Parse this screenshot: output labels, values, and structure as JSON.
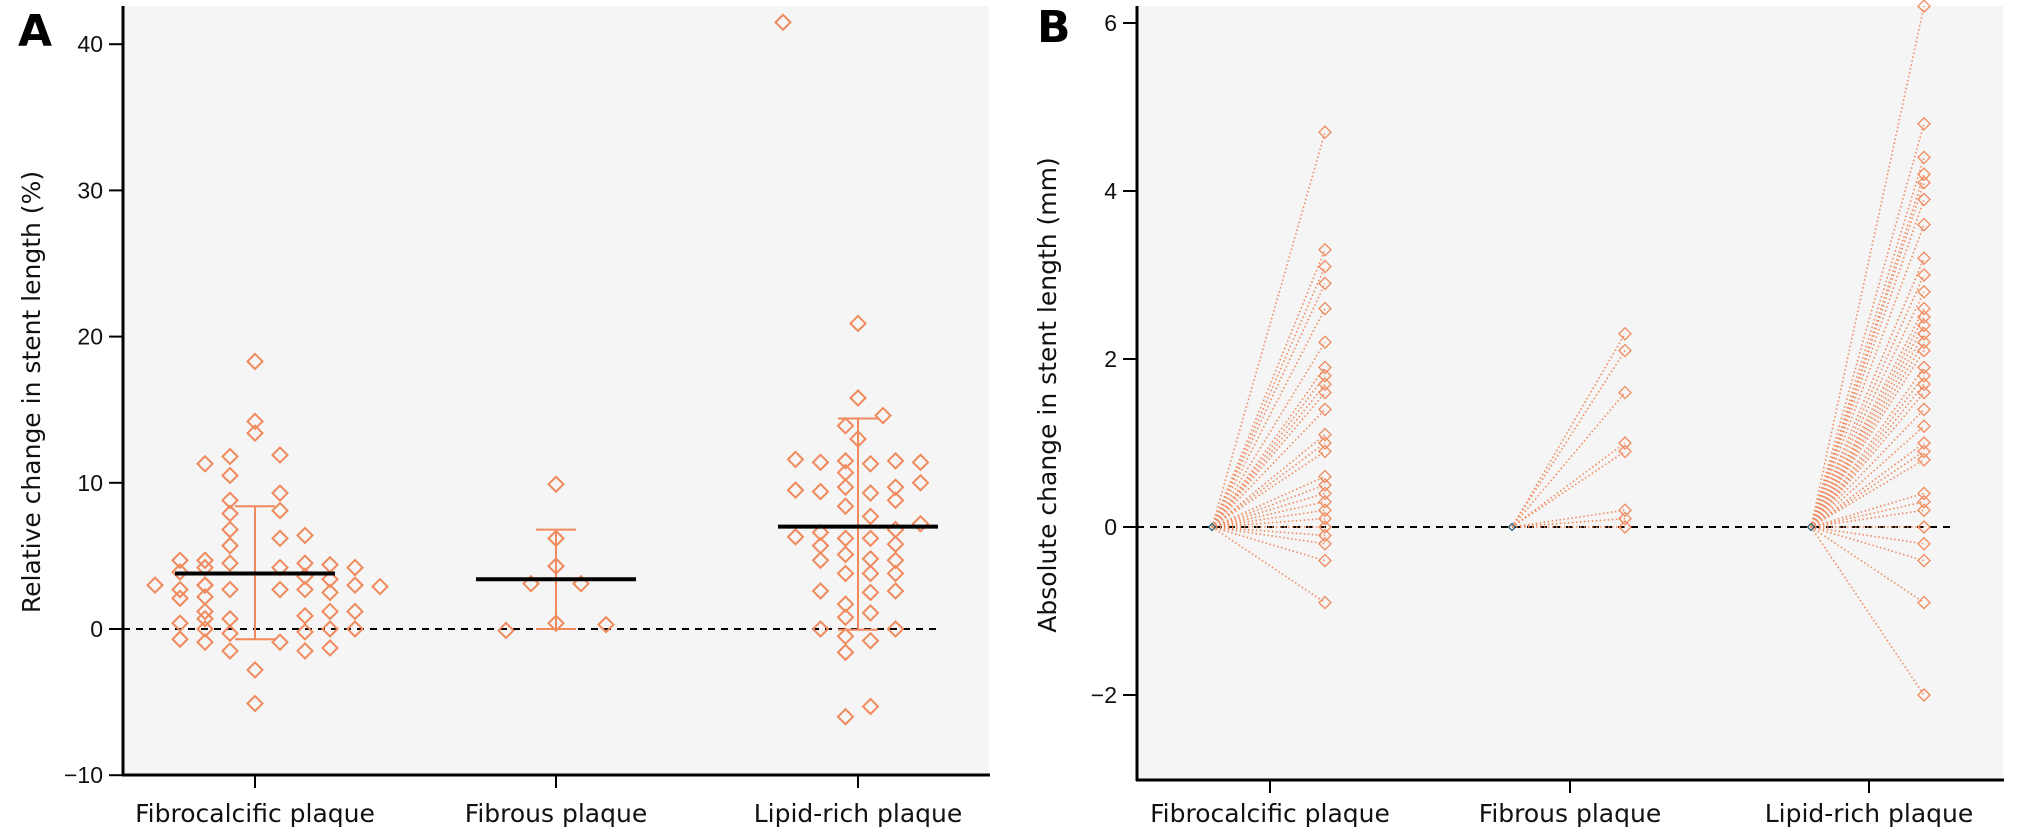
{
  "chart_data": [
    {
      "panel": "A",
      "type": "scatter",
      "subtype": "dot-plot with mean and SD error bars",
      "title": "",
      "xlabel": "",
      "ylabel": "Relative change in stent length (%)",
      "ylim": [
        -10,
        42
      ],
      "yticks": [
        -10,
        0,
        10,
        20,
        30,
        40
      ],
      "ytick_labels": [
        "−10",
        "0",
        "10",
        "20",
        "30",
        "40"
      ],
      "reference_line": 0,
      "grid": false,
      "categories": [
        "Fibrocalcific plaque",
        "Fibrous plaque",
        "Lipid-rich plaque"
      ],
      "series": [
        {
          "name": "Fibrocalcific plaque",
          "mean": 3.8,
          "sd_upper": 8.4,
          "sd_lower": -0.7,
          "values": [
            18.3,
            14.2,
            13.4,
            11.9,
            11.8,
            11.3,
            10.5,
            9.3,
            8.8,
            8.1,
            7.9,
            6.8,
            6.4,
            6.2,
            5.7,
            4.7,
            4.7,
            4.5,
            4.5,
            4.4,
            4.2,
            4.2,
            4.2,
            3.9,
            3.6,
            3.4,
            3.0,
            3.0,
            3.0,
            3.0,
            2.9,
            2.7,
            2.7,
            2.7,
            2.7,
            2.5,
            2.2,
            2.1,
            1.2,
            1.2,
            1.2,
            0.9,
            0.7,
            0.7,
            0.4,
            0.0,
            0.0,
            0.0,
            -0.2,
            -0.3,
            -0.7,
            -0.9,
            -0.9,
            -1.3,
            -1.5,
            -1.5,
            -2.8,
            -5.1
          ],
          "offsets": [
            0,
            0,
            0,
            1,
            -1,
            -2,
            -1,
            1,
            -1,
            1,
            -1,
            -1,
            2,
            1,
            -1,
            -3,
            -2,
            -1,
            2,
            3,
            -2,
            1,
            4,
            -3,
            2,
            3,
            -4,
            -2,
            -2,
            4,
            5,
            -3,
            -1,
            1,
            2,
            3,
            -2,
            -3,
            -2,
            3,
            4,
            2,
            -2,
            -1,
            -3,
            -2,
            3,
            4,
            2,
            -1,
            -3,
            -2,
            1,
            3,
            -1,
            2,
            0,
            0
          ]
        },
        {
          "name": "Fibrous plaque",
          "mean": 3.4,
          "sd_upper": 6.8,
          "sd_lower": 0.0,
          "values": [
            9.9,
            6.2,
            4.3,
            3.1,
            3.1,
            0.4,
            0.3,
            -0.1
          ],
          "offsets": [
            0,
            0,
            0,
            -1,
            1,
            0,
            2,
            -2
          ]
        },
        {
          "name": "Lipid-rich plaque",
          "mean": 7.0,
          "sd_upper": 14.4,
          "sd_lower": -0.05,
          "values": [
            41.5,
            20.9,
            15.8,
            14.6,
            13.9,
            13.0,
            11.6,
            11.4,
            11.5,
            11.3,
            11.5,
            11.4,
            10.7,
            9.5,
            9.4,
            9.7,
            9.3,
            10.0,
            9.7,
            8.8,
            8.4,
            7.7,
            7.2,
            6.3,
            6.6,
            5.7,
            4.7,
            2.6,
            0.0,
            6.2,
            5.1,
            3.8,
            1.7,
            0.8,
            -0.5,
            -1.6,
            -6.0,
            6.2,
            4.8,
            3.8,
            2.5,
            1.1,
            -0.8,
            -5.3,
            6.8,
            5.8,
            4.7,
            3.8,
            2.6,
            0.0
          ],
          "offsets": [
            -3,
            0,
            0,
            1,
            -0.5,
            0,
            -2.5,
            -1.5,
            -0.5,
            0.5,
            1.5,
            2.5,
            -0.5,
            -2.5,
            -1.5,
            -0.5,
            0.5,
            2.5,
            1.5,
            1.5,
            -0.5,
            0.5,
            2.5,
            -2.5,
            -1.5,
            -1.5,
            -1.5,
            -1.5,
            -1.5,
            -0.5,
            -0.5,
            -0.5,
            -0.5,
            -0.5,
            -0.5,
            -0.5,
            -0.5,
            0.5,
            0.5,
            0.5,
            0.5,
            0.5,
            0.5,
            0.5,
            1.5,
            1.5,
            1.5,
            1.5,
            1.5,
            1.5
          ]
        }
      ]
    },
    {
      "panel": "B",
      "type": "line",
      "subtype": "paired before/after lines from zero baseline",
      "title": "",
      "xlabel": "",
      "ylabel": "Absolute change in stent length (mm)",
      "ylim": [
        -3,
        6.2
      ],
      "yticks": [
        -2,
        0,
        2,
        4,
        6
      ],
      "ytick_labels": [
        "−2",
        "0",
        "2",
        "4",
        "6"
      ],
      "reference_line": 0,
      "grid": false,
      "categories": [
        "Fibrocalcific plaque",
        "Fibrous plaque",
        "Lipid-rich plaque"
      ],
      "baseline_value": 0,
      "series": [
        {
          "name": "Fibrocalcific plaque",
          "values": [
            4.7,
            3.3,
            3.1,
            2.9,
            2.6,
            2.2,
            1.9,
            1.8,
            1.7,
            1.6,
            1.4,
            1.1,
            1.0,
            0.9,
            0.6,
            0.5,
            0.4,
            0.3,
            0.2,
            0.1,
            0.0,
            -0.1,
            -0.2,
            -0.4,
            -0.9
          ]
        },
        {
          "name": "Fibrous plaque",
          "values": [
            2.3,
            2.1,
            1.6,
            1.0,
            0.9,
            0.2,
            0.1,
            0.0
          ]
        },
        {
          "name": "Lipid-rich plaque",
          "values": [
            6.2,
            4.8,
            4.4,
            4.2,
            4.1,
            3.9,
            3.6,
            3.2,
            3.0,
            2.8,
            2.6,
            2.5,
            2.4,
            2.3,
            2.2,
            2.1,
            1.9,
            1.8,
            1.7,
            1.6,
            1.4,
            1.2,
            1.0,
            0.9,
            0.8,
            0.4,
            0.3,
            0.2,
            0.0,
            -0.2,
            -0.4,
            -0.9,
            -2.0
          ]
        }
      ]
    }
  ],
  "panels": {
    "a_letter": "A",
    "b_letter": "B"
  },
  "colors": {
    "marker": "#f08a5d",
    "mean_line": "#000000",
    "plot_background": "#f5f5f5",
    "baseline_marker": "#2f5f6f"
  }
}
